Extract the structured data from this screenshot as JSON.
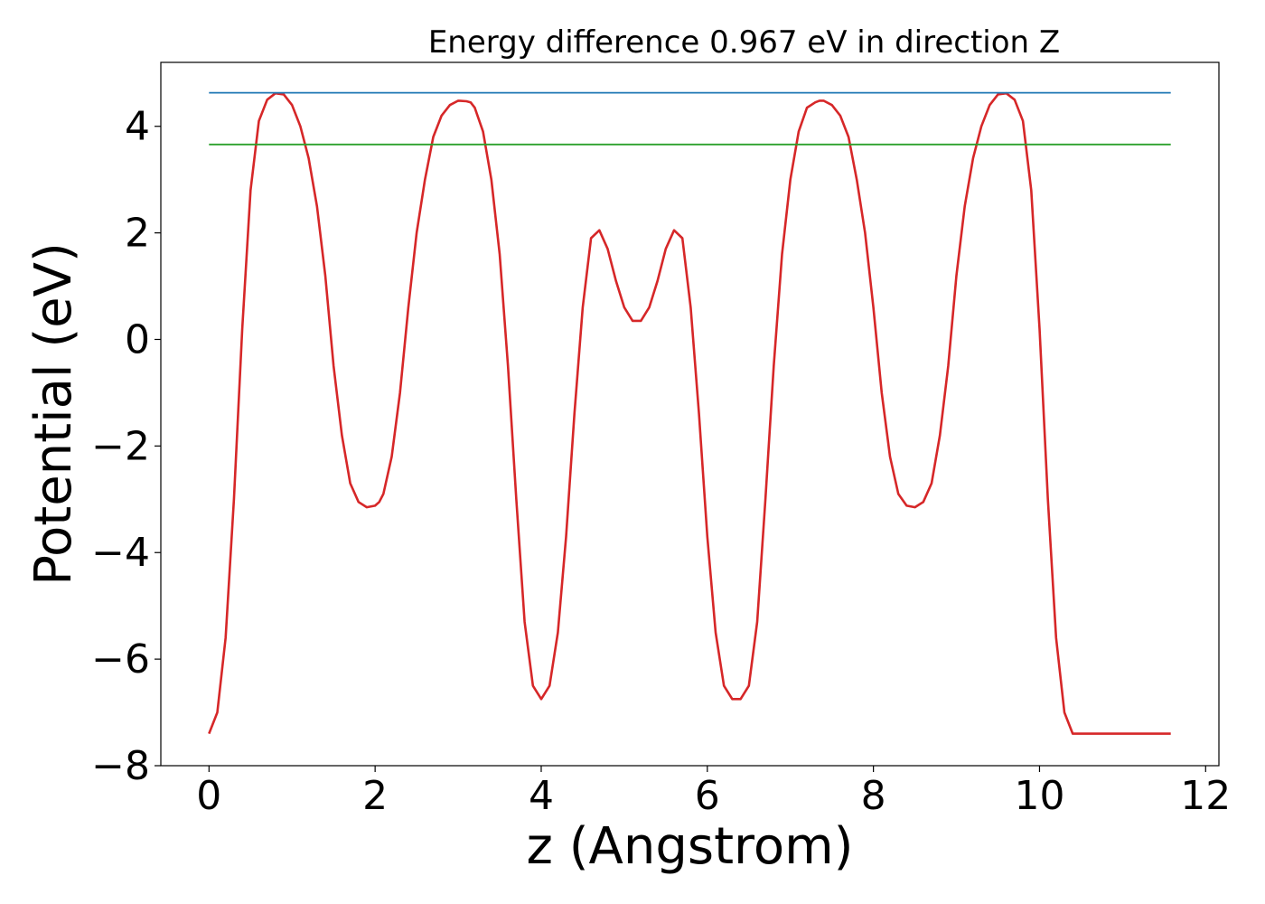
{
  "chart_data": {
    "type": "line",
    "title": "Energy difference 0.967 eV in direction Z",
    "xlabel": "z (Angstrom)",
    "ylabel": "Potential (eV)",
    "xlim": [
      -0.58,
      12.16
    ],
    "ylim": [
      -8,
      5.2
    ],
    "xticks": [
      0,
      2,
      4,
      6,
      8,
      10,
      12
    ],
    "xtick_labels": [
      "0",
      "2",
      "4",
      "6",
      "8",
      "10",
      "12"
    ],
    "yticks": [
      -8,
      -6,
      -4,
      -2,
      0,
      2,
      4
    ],
    "ytick_labels": [
      "−8",
      "−6",
      "−4",
      "−2",
      "0",
      "2",
      "4"
    ],
    "grid": false,
    "series": [
      {
        "color": "#d62728",
        "x": [
          0,
          0.1,
          0.2,
          0.3,
          0.4,
          0.5,
          0.6,
          0.7,
          0.8,
          0.9,
          1.0,
          1.1,
          1.2,
          1.3,
          1.4,
          1.5,
          1.6,
          1.7,
          1.8,
          1.9,
          2.0,
          2.05,
          2.1,
          2.2,
          2.3,
          2.4,
          2.5,
          2.6,
          2.7,
          2.8,
          2.9,
          3.0,
          3.1,
          3.15,
          3.2,
          3.3,
          3.4,
          3.5,
          3.6,
          3.7,
          3.8,
          3.9,
          4.0,
          4.1,
          4.2,
          4.3,
          4.4,
          4.5,
          4.6,
          4.7,
          4.8,
          4.9,
          5.0,
          5.1,
          5.2,
          5.3,
          5.4,
          5.5,
          5.6,
          5.7,
          5.8,
          5.9,
          6.0,
          6.1,
          6.2,
          6.3,
          6.4,
          6.5,
          6.6,
          6.7,
          6.8,
          6.9,
          7.0,
          7.1,
          7.2,
          7.3,
          7.35,
          7.4,
          7.5,
          7.6,
          7.7,
          7.8,
          7.9,
          8.0,
          8.1,
          8.2,
          8.3,
          8.4,
          8.5,
          8.6,
          8.7,
          8.8,
          8.9,
          9.0,
          9.1,
          9.2,
          9.3,
          9.4,
          9.5,
          9.6,
          9.7,
          9.8,
          9.9,
          10.0,
          10.1,
          10.2,
          10.3,
          10.4,
          10.5,
          10.6,
          10.7,
          10.8,
          10.9,
          11.0,
          11.1,
          11.2,
          11.3,
          11.4,
          11.5,
          11.58
        ],
        "y": [
          -7.4,
          -7.0,
          -5.6,
          -3.0,
          0.2,
          2.8,
          4.1,
          4.5,
          4.62,
          4.6,
          4.4,
          4.0,
          3.4,
          2.5,
          1.2,
          -0.5,
          -1.8,
          -2.7,
          -3.05,
          -3.15,
          -3.12,
          -3.05,
          -2.9,
          -2.2,
          -1.0,
          0.6,
          2.0,
          3.0,
          3.8,
          4.2,
          4.4,
          4.48,
          4.47,
          4.45,
          4.35,
          3.9,
          3.0,
          1.6,
          -0.5,
          -3.0,
          -5.3,
          -6.5,
          -6.75,
          -6.5,
          -5.5,
          -3.7,
          -1.4,
          0.6,
          1.9,
          2.05,
          1.7,
          1.1,
          0.6,
          0.35,
          0.35,
          0.6,
          1.1,
          1.7,
          2.05,
          1.9,
          0.6,
          -1.4,
          -3.7,
          -5.5,
          -6.5,
          -6.75,
          -6.75,
          -6.5,
          -5.3,
          -3.0,
          -0.5,
          1.6,
          3.0,
          3.9,
          4.35,
          4.45,
          4.48,
          4.48,
          4.4,
          4.2,
          3.8,
          3.0,
          2.0,
          0.6,
          -1.0,
          -2.2,
          -2.9,
          -3.12,
          -3.15,
          -3.05,
          -2.7,
          -1.8,
          -0.5,
          1.2,
          2.5,
          3.4,
          4.0,
          4.4,
          4.6,
          4.62,
          4.5,
          4.1,
          2.8,
          0.2,
          -3.0,
          -5.6,
          -7.0,
          -7.4,
          -7.4,
          -7.4,
          -7.4,
          -7.4,
          -7.4,
          -7.4,
          -7.4,
          -7.4,
          -7.4,
          -7.4,
          -7.4,
          -7.4
        ]
      },
      {
        "color": "#1f77b4",
        "x": [
          0,
          11.58
        ],
        "y": [
          4.63,
          4.63
        ]
      },
      {
        "color": "#2ca02c",
        "x": [
          0,
          11.58
        ],
        "y": [
          3.66,
          3.66
        ]
      }
    ]
  }
}
